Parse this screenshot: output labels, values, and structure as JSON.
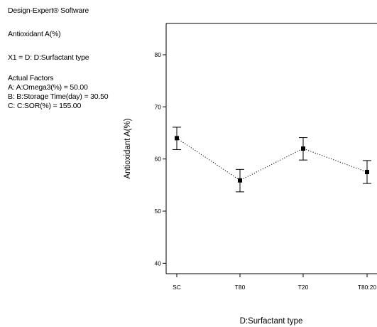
{
  "header": {
    "software": "Design-Expert® Software",
    "response": "Antioxidant A(%)",
    "x1_line": "X1 = D: D:Surfactant type",
    "actual_factors_title": "Actual Factors",
    "factors": [
      "A: A:Omega3(%) = 50.00",
      "B: B:Storage Time(day) = 30.50",
      "C: C:SOR(%) = 155.00"
    ]
  },
  "chart_data": {
    "type": "line",
    "categories": [
      "SC",
      "T80",
      "T20",
      "T80:20"
    ],
    "series": [
      {
        "values": [
          64.0,
          55.9,
          62.0,
          57.5
        ],
        "error_low": [
          61.8,
          53.7,
          59.8,
          55.3
        ],
        "error_high": [
          66.1,
          58.0,
          64.1,
          59.7
        ]
      }
    ],
    "xlabel": "D:Surfactant type",
    "ylabel": "Antioxidant A(%)",
    "ylim": [
      38,
      86
    ],
    "yticks": [
      40,
      50,
      60,
      70,
      80
    ],
    "line_style": "dotted",
    "marker": "square",
    "grid": false,
    "legend": "none",
    "colors": {
      "line": "#000000",
      "marker": "#000000",
      "axis": "#000000"
    }
  }
}
